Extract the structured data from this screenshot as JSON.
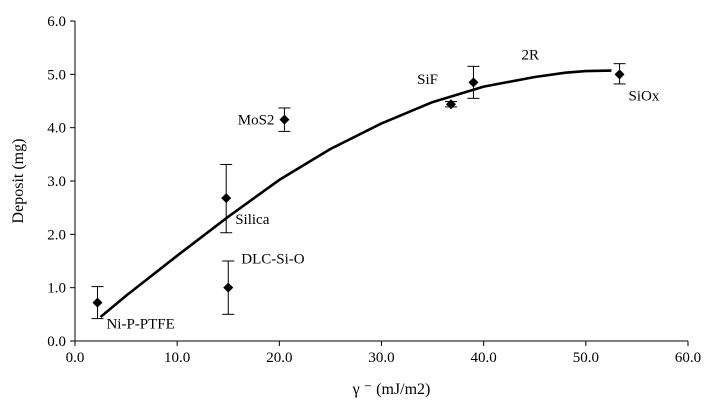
{
  "chart_data": {
    "type": "scatter",
    "title": "",
    "xlabel": "γ ⁻ (mJ/m2)",
    "ylabel": "Deposit (mg)",
    "xlim": [
      0,
      60
    ],
    "ylim": [
      0,
      6
    ],
    "xticks": [
      "0.0",
      "10.0",
      "20.0",
      "30.0",
      "40.0",
      "50.0",
      "60.0"
    ],
    "yticks": [
      "0.0",
      "1.0",
      "2.0",
      "3.0",
      "4.0",
      "5.0",
      "6.0"
    ],
    "grid": false,
    "legend": "none",
    "marker": "diamond",
    "series": [
      {
        "points": [
          {
            "label": "Ni-P-PTFE",
            "x": 2.2,
            "y": 0.72,
            "err_low": 0.3,
            "err_high": 0.3,
            "label_pos": "below-right"
          },
          {
            "label": "DLC-Si-O",
            "x": 15.0,
            "y": 1.0,
            "err_low": 0.5,
            "err_high": 0.5,
            "label_pos": "right"
          },
          {
            "label": "Silica",
            "x": 14.8,
            "y": 2.68,
            "err_low": 0.65,
            "err_high": 0.63,
            "label_pos": "below-right"
          },
          {
            "label": "MoS2",
            "x": 20.5,
            "y": 4.15,
            "err_low": 0.22,
            "err_high": 0.22,
            "label_pos": "left"
          },
          {
            "label": "SiF",
            "x": 36.8,
            "y": 4.44,
            "err_low": 0.05,
            "err_high": 0.05,
            "label_pos": "above-left"
          },
          {
            "label": "",
            "x": 39.0,
            "y": 4.85,
            "err_low": 0.3,
            "err_high": 0.3,
            "label_pos": "none"
          },
          {
            "label": "SiOx",
            "x": 53.3,
            "y": 5.0,
            "err_low": 0.18,
            "err_high": 0.2,
            "label_pos": "below-right"
          }
        ]
      }
    ],
    "trend": {
      "label": "2R",
      "points": [
        [
          2.5,
          0.45
        ],
        [
          5,
          0.85
        ],
        [
          10,
          1.6
        ],
        [
          15,
          2.33
        ],
        [
          20,
          3.02
        ],
        [
          25,
          3.6
        ],
        [
          30,
          4.08
        ],
        [
          35,
          4.48
        ],
        [
          40,
          4.77
        ],
        [
          45,
          4.95
        ],
        [
          48,
          5.03
        ],
        [
          50,
          5.06
        ],
        [
          52.5,
          5.07
        ]
      ]
    }
  }
}
